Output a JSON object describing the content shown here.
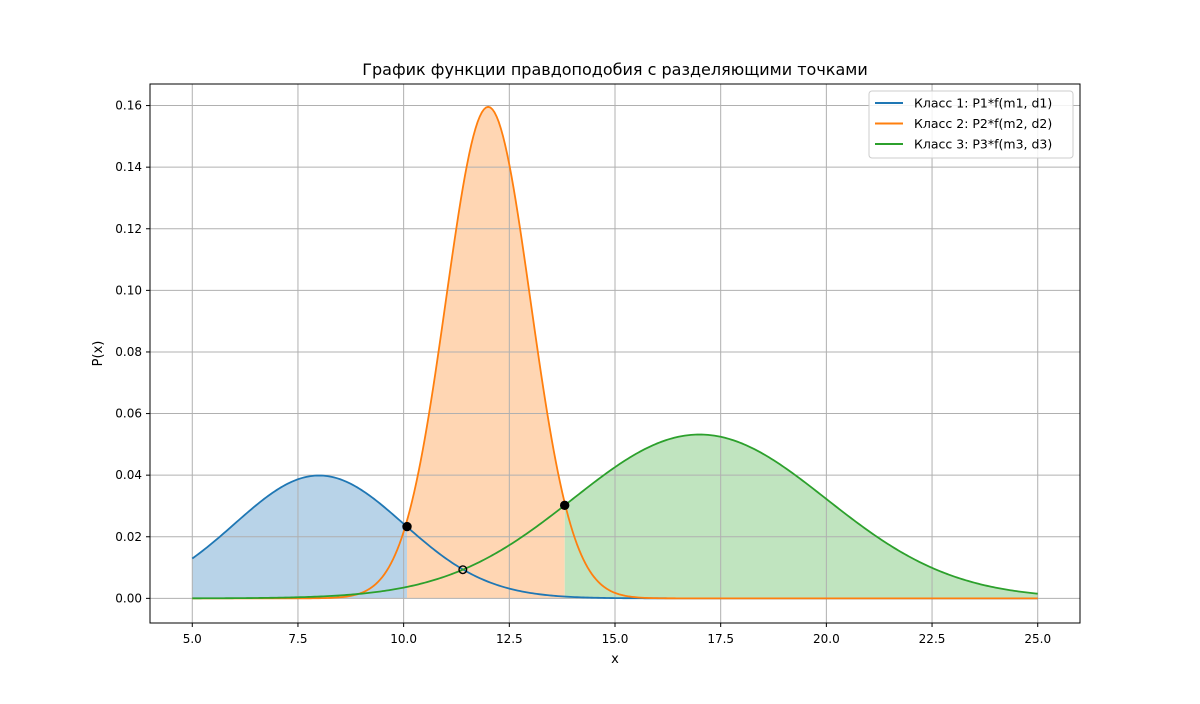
{
  "chart_data": {
    "type": "line",
    "title": "График функции правдоподобия с разделяющими точками",
    "xlabel": "x",
    "ylabel": "P(x)",
    "xlim": [
      4.0,
      26.0
    ],
    "ylim": [
      -0.008,
      0.167
    ],
    "x_ticks": [
      5.0,
      7.5,
      10.0,
      12.5,
      15.0,
      17.5,
      20.0,
      22.5,
      25.0
    ],
    "x_tick_labels": [
      "5.0",
      "7.5",
      "10.0",
      "12.5",
      "15.0",
      "17.5",
      "20.0",
      "22.5",
      "25.0"
    ],
    "y_ticks": [
      0.0,
      0.02,
      0.04,
      0.06,
      0.08,
      0.1,
      0.12,
      0.14,
      0.16
    ],
    "y_tick_labels": [
      "0.00",
      "0.02",
      "0.04",
      "0.06",
      "0.08",
      "0.10",
      "0.12",
      "0.14",
      "0.16"
    ],
    "grid": true,
    "legend_position": "top-right",
    "x_range": [
      5.0,
      25.0
    ],
    "series": [
      {
        "name": "Класс 1: P1*f(m1, d1)",
        "color": "#1f77b4",
        "fill": "#b8d3e8",
        "distribution": "normal",
        "mean": 8.0,
        "sigma": 2.0,
        "peak": 0.03989
      },
      {
        "name": "Класс 2: P2*f(m2, d2)",
        "color": "#ff7f0e",
        "fill": "#ffd6b3",
        "distribution": "normal",
        "mean": 12.0,
        "sigma": 1.0,
        "peak": 0.15958
      },
      {
        "name": "Класс 3: P3*f(m3, d3)",
        "color": "#2ca02c",
        "fill": "#c0e4bf",
        "distribution": "normal",
        "mean": 17.0,
        "sigma": 3.0,
        "peak": 0.05319
      }
    ],
    "fill_regions": [
      {
        "series": 0,
        "from": 5.0,
        "to": 10.08
      },
      {
        "series": 1,
        "from": 10.08,
        "to": 13.81
      },
      {
        "series": 2,
        "from": 13.81,
        "to": 25.0
      }
    ],
    "separating_points": [
      {
        "x": 10.08,
        "y": 0.0233,
        "style": "filled"
      },
      {
        "x": 13.81,
        "y": 0.0302,
        "style": "filled"
      },
      {
        "x": 11.4,
        "y": 0.0093,
        "style": "hollow"
      }
    ]
  }
}
